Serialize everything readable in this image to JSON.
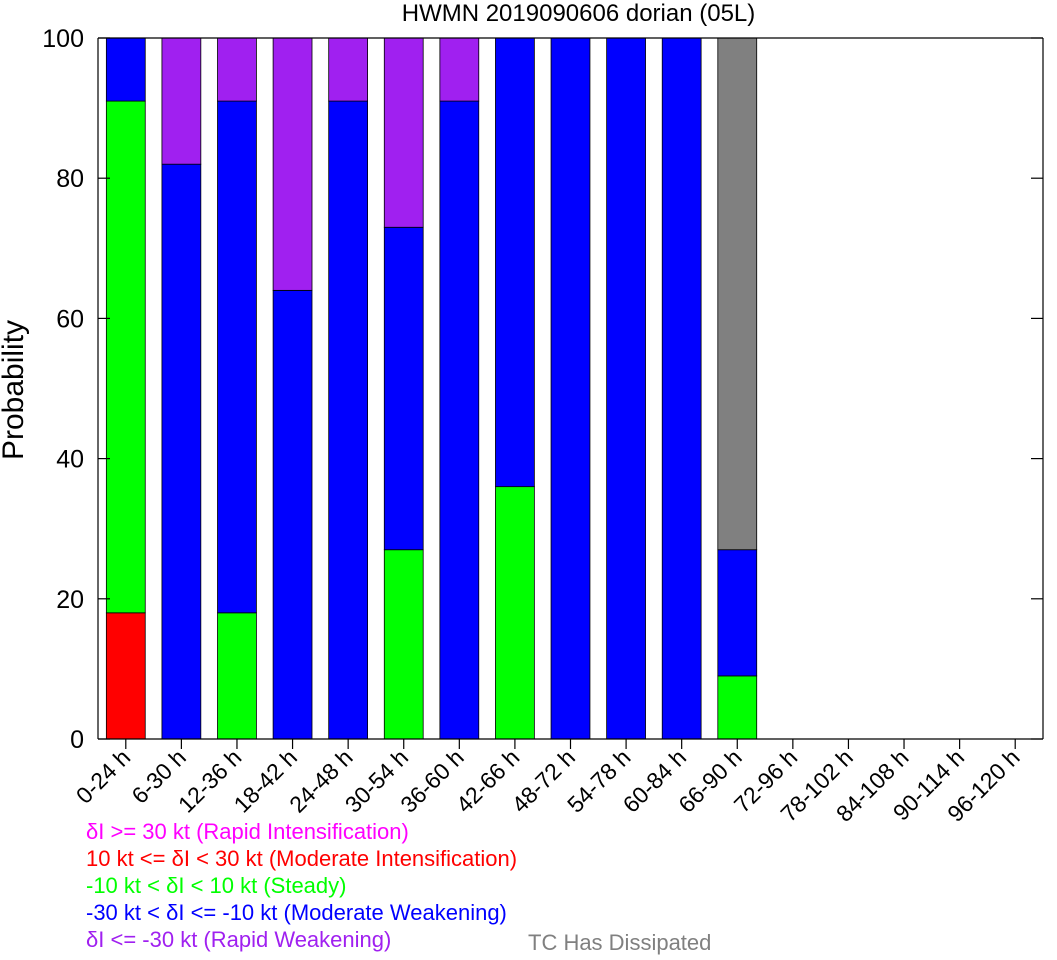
{
  "chart_data": {
    "type": "bar",
    "title": "HWMN 2019090606 dorian (05L)",
    "ylabel": "Probability",
    "xlabel": "",
    "ylim": [
      0,
      100
    ],
    "yticks": [
      0,
      20,
      40,
      60,
      80,
      100
    ],
    "stacked": true,
    "grid": false,
    "categories": [
      "0-24 h",
      "6-30 h",
      "12-36 h",
      "18-42 h",
      "24-48 h",
      "30-54 h",
      "36-60 h",
      "42-66 h",
      "48-72 h",
      "54-78 h",
      "60-84 h",
      "66-90 h",
      "72-96 h",
      "78-102 h",
      "84-108 h",
      "90-114 h",
      "96-120 h"
    ],
    "series": [
      {
        "key": "rapid_weakening",
        "color": "#a020f0",
        "values": [
          0,
          0,
          0,
          0,
          0,
          0,
          0,
          0,
          0,
          0,
          0,
          0,
          0,
          0,
          0,
          0,
          0
        ]
      },
      {
        "key": "moderate_intensification",
        "color": "#ff0000",
        "values": [
          18,
          0,
          0,
          0,
          0,
          0,
          0,
          0,
          0,
          0,
          0,
          0,
          0,
          0,
          0,
          0,
          0
        ]
      },
      {
        "key": "steady",
        "color": "#00ff00",
        "values": [
          73,
          0,
          18,
          0,
          0,
          27,
          0,
          36,
          0,
          0,
          0,
          9,
          0,
          0,
          0,
          0,
          0
        ]
      },
      {
        "key": "moderate_weakening",
        "color": "#0000ff",
        "values": [
          9,
          82,
          73,
          64,
          91,
          46,
          91,
          64,
          100,
          100,
          100,
          18,
          0,
          0,
          0,
          0,
          0
        ]
      },
      {
        "key": "rapid_intensification_or_weakening_top",
        "color": "#a020f0",
        "values": [
          0,
          18,
          9,
          36,
          9,
          27,
          9,
          0,
          0,
          0,
          0,
          0,
          0,
          0,
          0,
          0,
          0
        ]
      },
      {
        "key": "dissipated",
        "color": "#808080",
        "values": [
          0,
          0,
          0,
          0,
          0,
          0,
          0,
          0,
          0,
          0,
          0,
          73,
          0,
          0,
          0,
          0,
          0
        ]
      }
    ],
    "legend": [
      {
        "label": "δI >= 30 kt (Rapid Intensification)",
        "color": "#ff00ff"
      },
      {
        "label": "10 kt <= δI < 30 kt (Moderate Intensification)",
        "color": "#ff0000"
      },
      {
        "label": "-10 kt < δI < 10 kt (Steady)",
        "color": "#00ff00"
      },
      {
        "label": "-30 kt < δI <= -10 kt (Moderate Weakening)",
        "color": "#0000ff"
      },
      {
        "label": "δI <= -30 kt (Rapid Weakening)",
        "color": "#a020f0"
      }
    ],
    "dissipated_label": "TC Has Dissipated",
    "dissipated_color": "#808080"
  }
}
